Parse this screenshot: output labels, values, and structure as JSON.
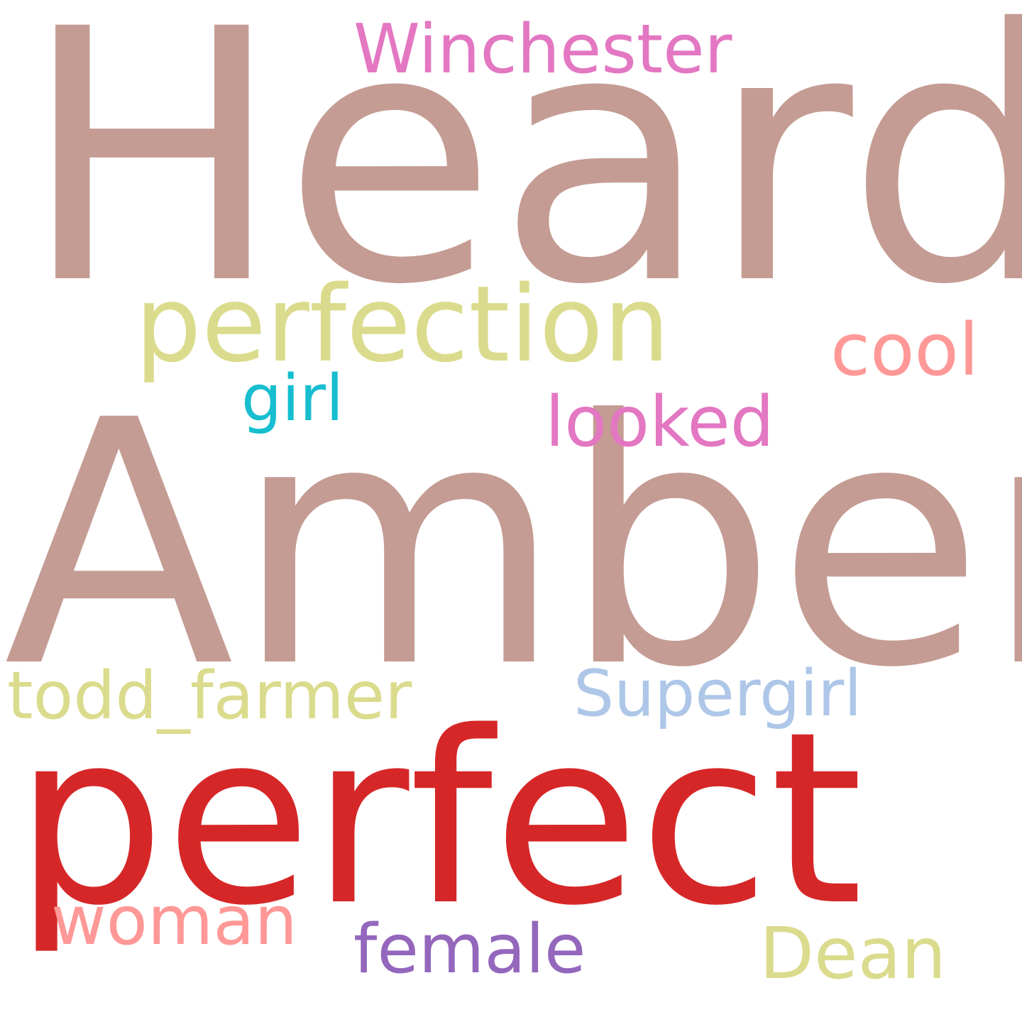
{
  "words": [
    {
      "text": "Heard",
      "color": "#c49c93"
    },
    {
      "text": "Amber",
      "color": "#c49c93"
    },
    {
      "text": "perfect",
      "color": "#d62728"
    },
    {
      "text": "perfection",
      "color": "#dbdb8d"
    },
    {
      "text": "Winchester",
      "color": "#e377c2"
    },
    {
      "text": "cool",
      "color": "#ff9896"
    },
    {
      "text": "girl",
      "color": "#17becf"
    },
    {
      "text": "looked",
      "color": "#e377c2"
    },
    {
      "text": "todd_farmer",
      "color": "#dbdb8d"
    },
    {
      "text": "Supergirl",
      "color": "#aec7e8"
    },
    {
      "text": "woman",
      "color": "#ff9896"
    },
    {
      "text": "female",
      "color": "#9467bd"
    },
    {
      "text": "Dean",
      "color": "#dbdb8d"
    }
  ]
}
